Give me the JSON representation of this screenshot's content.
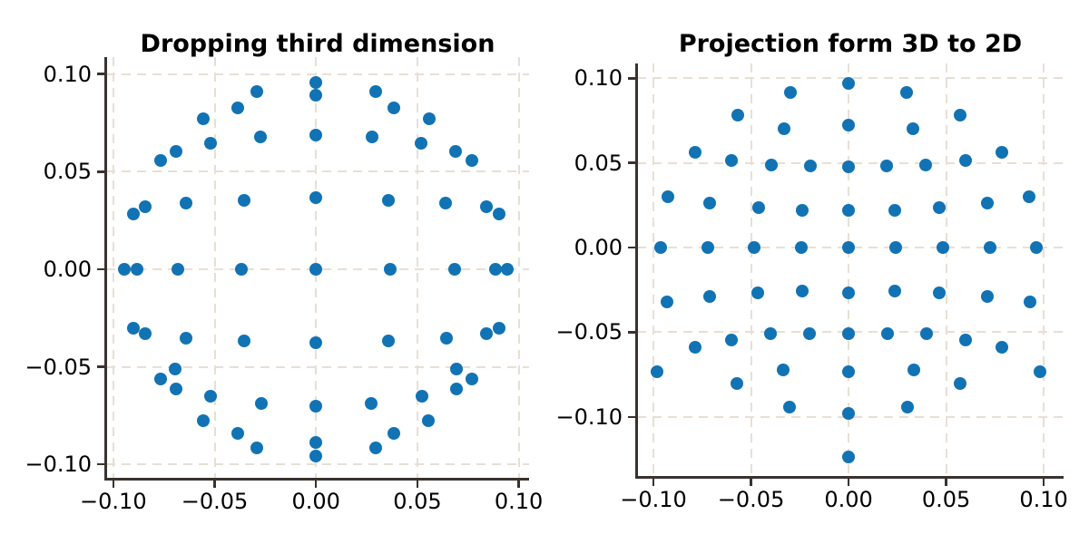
{
  "figure": {
    "background": "#ffffff",
    "marker_color": "#1173b4",
    "grid_color": "#e8dfd4",
    "spine_color": "#39322e",
    "tick_label_color": "#000000"
  },
  "chart_data": [
    {
      "type": "scatter",
      "title": "Dropping third dimension",
      "xlabel": "",
      "ylabel": "",
      "legend": null,
      "grid": true,
      "grid_style": "dashed",
      "xlim": [
        -0.1035,
        0.1051
      ],
      "ylim": [
        -0.1069,
        0.1087
      ],
      "xticks": {
        "values": [
          -0.1,
          -0.05,
          0.0,
          0.05,
          0.1
        ],
        "labels": [
          "−0.10",
          "−0.05",
          "0.00",
          "0.05",
          "0.10"
        ]
      },
      "yticks": {
        "values": [
          -0.1,
          -0.05,
          0.0,
          0.05,
          0.1
        ],
        "labels": [
          "−0.10",
          "−0.05",
          "0.00",
          "0.05",
          "0.10"
        ]
      },
      "marker": {
        "color": "#1173b4",
        "diameter": 14
      },
      "points": [
        [
          -0.0944,
          0
        ],
        [
          -0.0885,
          0
        ],
        [
          -0.0683,
          0
        ],
        [
          -0.0368,
          0
        ],
        [
          0,
          0
        ],
        [
          0.0368,
          0
        ],
        [
          0.0683,
          0
        ],
        [
          0.0885,
          0
        ],
        [
          0.0944,
          0
        ],
        [
          0,
          0.0955
        ],
        [
          0,
          0.089
        ],
        [
          0,
          0.0686
        ],
        [
          0,
          0.0369
        ],
        [
          0,
          -0.0375
        ],
        [
          0,
          -0.07
        ],
        [
          0,
          -0.089
        ],
        [
          0,
          -0.0958
        ],
        [
          -0.0294,
          0.0909
        ],
        [
          0.0294,
          0.0909
        ],
        [
          -0.0384,
          0.0829
        ],
        [
          0.0384,
          0.0829
        ],
        [
          -0.0557,
          0.0771
        ],
        [
          0.0557,
          0.0771
        ],
        [
          -0.0276,
          0.0678
        ],
        [
          0.0276,
          0.0678
        ],
        [
          -0.0518,
          0.0644
        ],
        [
          0.0518,
          0.0644
        ],
        [
          -0.069,
          0.0603
        ],
        [
          0.069,
          0.0603
        ],
        [
          -0.0767,
          0.0559
        ],
        [
          0.0767,
          0.0559
        ],
        [
          -0.0355,
          0.0351
        ],
        [
          0.0355,
          0.0351
        ],
        [
          -0.0641,
          0.034
        ],
        [
          0.0641,
          0.034
        ],
        [
          -0.0842,
          0.032
        ],
        [
          0.0842,
          0.032
        ],
        [
          -0.0902,
          0.0284
        ],
        [
          0.0902,
          0.0284
        ],
        [
          -0.0902,
          -0.0301
        ],
        [
          0.0902,
          -0.0301
        ],
        [
          -0.0841,
          -0.0332
        ],
        [
          0.0841,
          -0.0332
        ],
        [
          -0.0643,
          -0.0352
        ],
        [
          0.0643,
          -0.0352
        ],
        [
          -0.0355,
          -0.0369
        ],
        [
          0.0355,
          -0.0369
        ],
        [
          -0.0695,
          -0.0512
        ],
        [
          0.0695,
          -0.0512
        ],
        [
          -0.0767,
          -0.0564
        ],
        [
          0.0767,
          -0.0564
        ],
        [
          -0.0691,
          -0.0613
        ],
        [
          0.0691,
          -0.0613
        ],
        [
          -0.0521,
          -0.0652
        ],
        [
          0.0521,
          -0.0652
        ],
        [
          -0.0271,
          -0.0687
        ],
        [
          0.0271,
          -0.0687
        ],
        [
          -0.0555,
          -0.0776
        ],
        [
          0.0555,
          -0.0776
        ],
        [
          -0.0385,
          -0.0842
        ],
        [
          0.0385,
          -0.0842
        ],
        [
          -0.0294,
          -0.0916
        ],
        [
          0.0294,
          -0.0916
        ]
      ]
    },
    {
      "type": "scatter",
      "title": "Projection form 3D to 2D",
      "xlabel": "",
      "ylabel": "",
      "legend": null,
      "grid": true,
      "grid_style": "dashed",
      "xlim": [
        -0.1084,
        0.1102
      ],
      "ylim": [
        -0.1349,
        0.1087
      ],
      "xticks": {
        "values": [
          -0.1,
          -0.05,
          0.0,
          0.05,
          0.1
        ],
        "labels": [
          "−0.10",
          "−0.05",
          "0.00",
          "0.05",
          "0.10"
        ]
      },
      "yticks": {
        "values": [
          -0.1,
          -0.05,
          0.0,
          0.05,
          0.1
        ],
        "labels": [
          "−0.10",
          "−0.05",
          "0.00",
          "0.05",
          "0.10"
        ]
      },
      "marker": {
        "color": "#1173b4",
        "diameter": 14
      },
      "points": [
        [
          -0.0963,
          0
        ],
        [
          -0.0723,
          0
        ],
        [
          -0.0483,
          0
        ],
        [
          -0.0243,
          0
        ],
        [
          0,
          0
        ],
        [
          0.0243,
          0
        ],
        [
          0.0483,
          0
        ],
        [
          0.0723,
          0
        ],
        [
          0.0963,
          0
        ],
        [
          0,
          0.097
        ],
        [
          0,
          0.0722
        ],
        [
          0,
          0.0478
        ],
        [
          0,
          0.022
        ],
        [
          0,
          -0.0266
        ],
        [
          0,
          -0.0509
        ],
        [
          0,
          -0.0733
        ],
        [
          0,
          -0.0978
        ],
        [
          0,
          -0.1236
        ],
        [
          -0.0299,
          0.0916
        ],
        [
          0.0299,
          0.0916
        ],
        [
          -0.057,
          0.0784
        ],
        [
          0.057,
          0.0784
        ],
        [
          -0.0332,
          0.0703
        ],
        [
          0.0332,
          0.0703
        ],
        [
          -0.0788,
          0.0563
        ],
        [
          0.0788,
          0.0563
        ],
        [
          -0.0598,
          0.0512
        ],
        [
          0.0598,
          0.0512
        ],
        [
          -0.0396,
          0.0487
        ],
        [
          0.0396,
          0.0487
        ],
        [
          -0.0197,
          0.0481
        ],
        [
          0.0197,
          0.0481
        ],
        [
          -0.0925,
          0.0298
        ],
        [
          0.0925,
          0.0298
        ],
        [
          -0.0711,
          0.0262
        ],
        [
          0.0711,
          0.0262
        ],
        [
          -0.0463,
          0.0238
        ],
        [
          0.0463,
          0.0238
        ],
        [
          -0.0236,
          0.0221
        ],
        [
          0.0236,
          0.0221
        ],
        [
          -0.0238,
          -0.0255
        ],
        [
          0.0238,
          -0.0255
        ],
        [
          -0.0467,
          -0.0266
        ],
        [
          0.0467,
          -0.0266
        ],
        [
          -0.0712,
          -0.0287
        ],
        [
          0.0712,
          -0.0287
        ],
        [
          -0.0929,
          -0.0321
        ],
        [
          0.0929,
          -0.0321
        ],
        [
          -0.02,
          -0.0511
        ],
        [
          0.02,
          -0.0511
        ],
        [
          -0.04,
          -0.051
        ],
        [
          0.04,
          -0.051
        ],
        [
          -0.0601,
          -0.0545
        ],
        [
          0.0601,
          -0.0545
        ],
        [
          -0.0785,
          -0.059
        ],
        [
          0.0785,
          -0.059
        ],
        [
          -0.0333,
          -0.0725
        ],
        [
          0.0333,
          -0.0725
        ],
        [
          -0.0574,
          -0.0805
        ],
        [
          0.0574,
          -0.0805
        ],
        [
          -0.0983,
          -0.0732
        ],
        [
          0.0983,
          -0.0732
        ],
        [
          -0.0301,
          -0.0944
        ],
        [
          0.0301,
          -0.0944
        ]
      ]
    }
  ]
}
